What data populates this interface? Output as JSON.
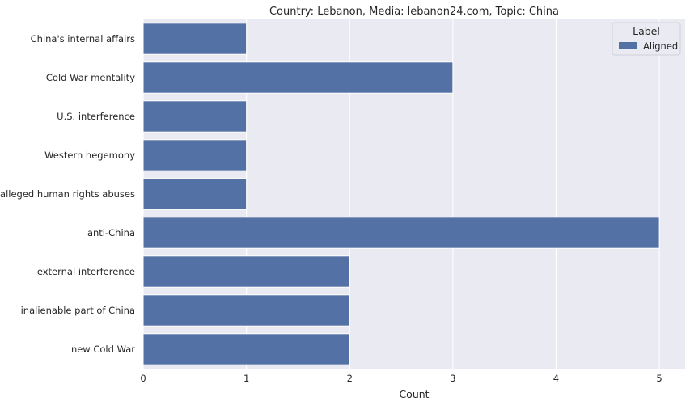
{
  "chart_data": {
    "type": "bar",
    "orientation": "horizontal",
    "title": "Country: Lebanon, Media: lebanon24.com, Topic: China",
    "xlabel": "Count",
    "ylabel": "",
    "categories": [
      "China's internal affairs",
      "Cold War mentality",
      "U.S. interference",
      "Western hegemony",
      "alleged human rights abuses",
      "anti-China",
      "external interference",
      "inalienable part of China",
      "new Cold War"
    ],
    "series": [
      {
        "name": "Aligned",
        "values": [
          1,
          3,
          1,
          1,
          1,
          5,
          2,
          2,
          2
        ],
        "color": "#5471a5"
      }
    ],
    "xlim": [
      0,
      5.25
    ],
    "xticks": [
      "0",
      "1",
      "2",
      "3",
      "4",
      "5"
    ],
    "grid": true,
    "legend": {
      "title": "Label",
      "placement": "top-right"
    },
    "background_color": "#eaeaf2"
  }
}
